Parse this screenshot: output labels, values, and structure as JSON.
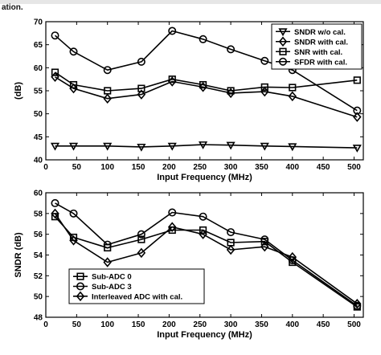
{
  "caption_fragment": "ation.",
  "chart_data": [
    {
      "type": "line",
      "xlabel": "Input Frequency (MHz)",
      "ylabel": "(dB)",
      "xlim": [
        0,
        515
      ],
      "ylim": [
        40,
        70
      ],
      "xticks": [
        0,
        50,
        100,
        150,
        200,
        250,
        300,
        350,
        400,
        450,
        500
      ],
      "yticks": [
        40,
        45,
        50,
        55,
        60,
        65,
        70
      ],
      "legend_position": "top-right",
      "series": [
        {
          "name": "SNDR w/o cal.",
          "marker": "triangle-down",
          "x": [
            15,
            45,
            100,
            155,
            205,
            255,
            300,
            355,
            400,
            505
          ],
          "y": [
            43.0,
            43.0,
            43.0,
            42.8,
            43.0,
            43.3,
            43.2,
            43.0,
            42.9,
            42.6
          ]
        },
        {
          "name": "SNDR with cal.",
          "marker": "diamond",
          "x": [
            15,
            45,
            100,
            155,
            205,
            255,
            300,
            355,
            400,
            505
          ],
          "y": [
            58.0,
            55.5,
            53.3,
            54.2,
            57.0,
            55.8,
            54.5,
            54.8,
            53.8,
            49.3
          ]
        },
        {
          "name": "SNR with cal.",
          "marker": "square",
          "x": [
            15,
            45,
            100,
            155,
            205,
            255,
            300,
            355,
            400,
            505
          ],
          "y": [
            59.0,
            56.3,
            55.0,
            55.5,
            57.5,
            56.3,
            55.0,
            55.8,
            55.7,
            57.3
          ]
        },
        {
          "name": "SFDR with cal.",
          "marker": "circle",
          "x": [
            15,
            45,
            100,
            155,
            205,
            255,
            300,
            355,
            400,
            505
          ],
          "y": [
            67.0,
            63.5,
            59.5,
            61.3,
            68.0,
            66.2,
            64.0,
            61.5,
            59.5,
            50.7
          ]
        }
      ]
    },
    {
      "type": "line",
      "xlabel": "Input Frequency (MHz)",
      "ylabel": "SNDR (dB)",
      "xlim": [
        0,
        515
      ],
      "ylim": [
        48,
        60
      ],
      "xticks": [
        0,
        50,
        100,
        150,
        200,
        250,
        300,
        350,
        400,
        450,
        500
      ],
      "yticks": [
        48,
        50,
        52,
        54,
        56,
        58,
        60
      ],
      "legend_position": "bottom-left",
      "series": [
        {
          "name": "Sub-ADC 0",
          "marker": "square",
          "x": [
            15,
            45,
            100,
            155,
            205,
            255,
            300,
            355,
            400,
            505
          ],
          "y": [
            57.7,
            55.7,
            54.7,
            55.5,
            56.4,
            56.4,
            55.2,
            55.3,
            53.3,
            49.0
          ]
        },
        {
          "name": "Sub-ADC 3",
          "marker": "circle",
          "x": [
            15,
            45,
            100,
            155,
            205,
            255,
            300,
            355,
            400,
            505
          ],
          "y": [
            59.0,
            58.0,
            55.0,
            56.0,
            58.1,
            57.7,
            56.2,
            55.5,
            53.5,
            49.1
          ]
        },
        {
          "name": "Interleaved ADC with cal.",
          "marker": "diamond",
          "x": [
            15,
            45,
            100,
            155,
            205,
            255,
            300,
            355,
            400,
            505
          ],
          "y": [
            58.0,
            55.4,
            53.3,
            54.2,
            56.7,
            56.0,
            54.5,
            54.8,
            53.8,
            49.3
          ]
        }
      ]
    }
  ]
}
